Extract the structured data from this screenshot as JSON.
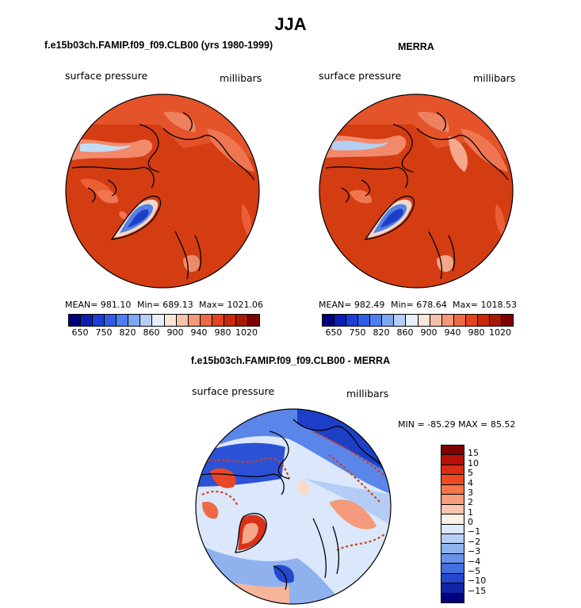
{
  "title": "JJA",
  "panels": [
    {
      "title": "f.e15b03ch.FAMIP.f09_f09.CLB00 (yrs 1980-1999)",
      "variable": "surface pressure",
      "units": "millibars",
      "mean": "MEAN= 981.10",
      "min": "Min= 689.13",
      "max": "Max= 1021.06"
    },
    {
      "title": "MERRA",
      "variable": "surface pressure",
      "units": "millibars",
      "mean": "MEAN= 982.49",
      "min": "Min= 678.64",
      "max": "Max= 1018.53"
    }
  ],
  "colorbar": {
    "colors": [
      "#00007f",
      "#0c1fb0",
      "#1a3ed6",
      "#2f5de8",
      "#4d7ff0",
      "#7ea6f3",
      "#b4cff8",
      "#e6f0fc",
      "#fbe6dc",
      "#f8c2aa",
      "#f49878",
      "#ee6a46",
      "#e4441f",
      "#c92a0c",
      "#a81a05",
      "#7f0000"
    ],
    "ticks": [
      "650",
      "750",
      "820",
      "860",
      "900",
      "940",
      "980",
      "1020"
    ]
  },
  "diff": {
    "title": "f.e15b03ch.FAMIP.f09_f09.CLB00 - MERRA",
    "variable": "surface pressure",
    "units": "millibars",
    "minmax": "MIN = -85.29  MAX =  85.52",
    "colorbar": {
      "colors": [
        "#7f0000",
        "#b80f06",
        "#dc2d14",
        "#ee4a22",
        "#f4764a",
        "#f79c7c",
        "#fac6b0",
        "#fdeee6",
        "#dce9fb",
        "#b7cff6",
        "#8fb2ef",
        "#6a93ea",
        "#436fe0",
        "#2347cd",
        "#0e25a8",
        "#00007f"
      ],
      "ticks": [
        "15",
        "10",
        "5",
        "4",
        "3",
        "2",
        "1",
        "0",
        "−1",
        "−2",
        "−3",
        "−4",
        "−5",
        "−10",
        "−15"
      ]
    }
  }
}
